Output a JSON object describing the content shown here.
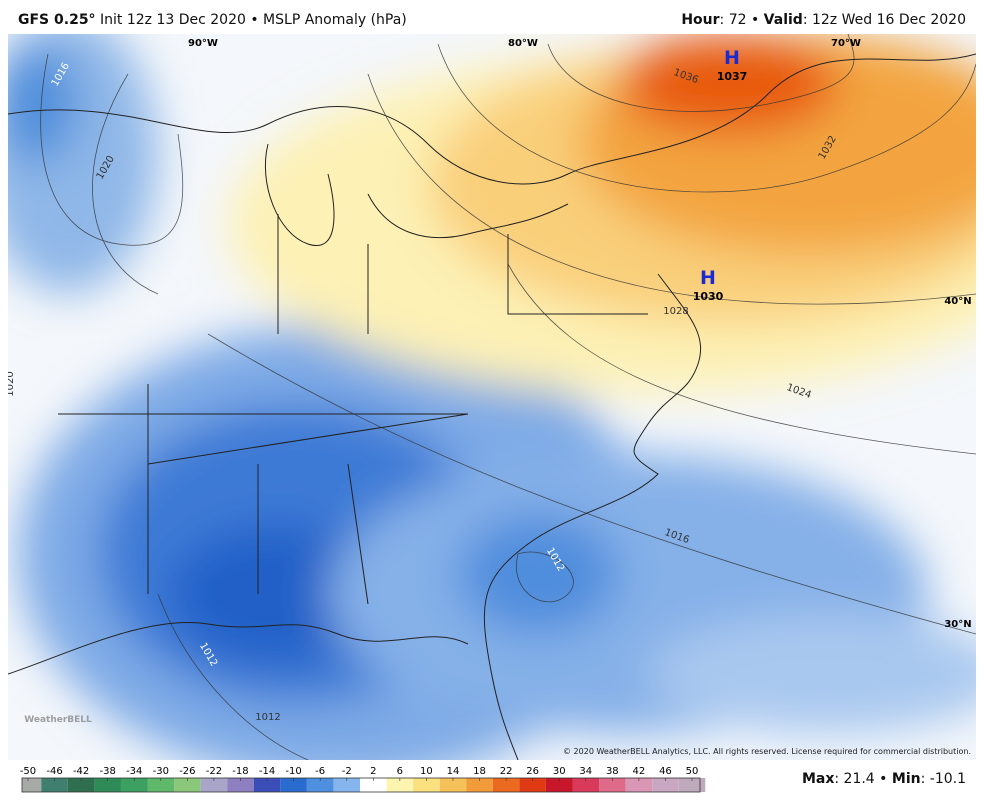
{
  "header": {
    "model": "GFS 0.25°",
    "subtitle": "Init 12z 13 Dec 2020 • MSLP Anomaly (hPa)",
    "hour_label": "Hour",
    "hour": ": 72 • ",
    "valid_label": "Valid",
    "valid": ": 12z Wed 16 Dec 2020"
  },
  "map": {
    "longitudes": [
      "90°W",
      "80°W",
      "70°W"
    ],
    "latitudes": [
      "40°N",
      "30°N"
    ],
    "highs": [
      {
        "symbol": "H",
        "value": "1037"
      },
      {
        "symbol": "H",
        "value": "1030"
      }
    ],
    "isobar_labels": [
      "1016",
      "1020",
      "1020",
      "1036",
      "1032",
      "1028",
      "1024",
      "1016",
      "1012",
      "1012",
      "1012"
    ],
    "credit": "© 2020 WeatherBELL Analytics, LLC. All rights reserved. License required for commercial distribution.",
    "logo": "WeatherBELL"
  },
  "colorbar": {
    "ticks": [
      -50,
      -46,
      -42,
      -38,
      -34,
      -30,
      -26,
      -22,
      -18,
      -14,
      -10,
      -6,
      -2,
      2,
      6,
      10,
      14,
      18,
      22,
      26,
      30,
      34,
      38,
      42,
      46,
      50
    ]
  },
  "footer": {
    "max_label": "Max",
    "max": 21.4,
    "sep": "•",
    "min_label": "Min",
    "min": -10.1
  }
}
